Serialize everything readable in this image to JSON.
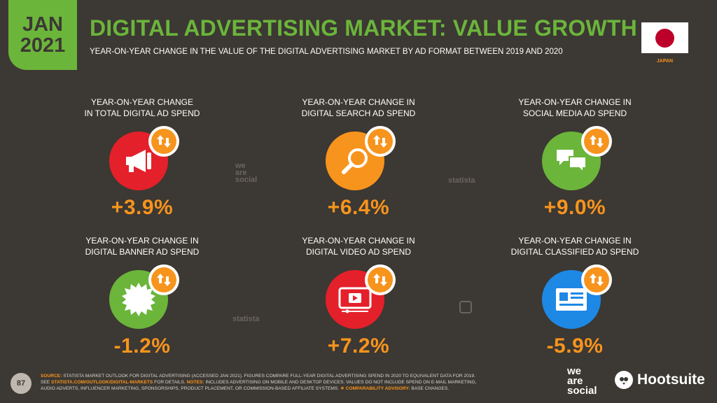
{
  "header": {
    "date_month": "JAN",
    "date_year": "2021",
    "title": "DIGITAL ADVERTISING MARKET: VALUE GROWTH",
    "subtitle": "YEAR-ON-YEAR CHANGE IN THE VALUE OF THE DIGITAL ADVERTISING MARKET BY AD FORMAT BETWEEN 2019 AND 2020",
    "country": "JAPAN"
  },
  "panels": [
    {
      "label1": "YEAR-ON-YEAR CHANGE",
      "label2": "IN TOTAL DIGITAL AD SPEND",
      "value": "+3.9%",
      "color": "#e4202a",
      "icon": "megaphone-icon"
    },
    {
      "label1": "YEAR-ON-YEAR CHANGE IN",
      "label2": "DIGITAL SEARCH AD SPEND",
      "value": "+6.4%",
      "color": "#f7941d",
      "icon": "magnifier-icon"
    },
    {
      "label1": "YEAR-ON-YEAR CHANGE IN",
      "label2": "SOCIAL MEDIA AD SPEND",
      "value": "+9.0%",
      "color": "#6bb53b",
      "icon": "speech-bubbles-icon"
    },
    {
      "label1": "YEAR-ON-YEAR CHANGE IN",
      "label2": "DIGITAL BANNER AD SPEND",
      "value": "-1.2%",
      "color": "#6bb53b",
      "icon": "banner-burst-icon"
    },
    {
      "label1": "YEAR-ON-YEAR CHANGE IN",
      "label2": "DIGITAL VIDEO AD SPEND",
      "value": "+7.2%",
      "color": "#e4202a",
      "icon": "video-player-icon"
    },
    {
      "label1": "YEAR-ON-YEAR CHANGE IN",
      "label2": "DIGITAL CLASSIFIED AD SPEND",
      "value": "-5.9%",
      "color": "#1e88e5",
      "icon": "classified-ad-icon"
    }
  ],
  "watermarks": {
    "we": "we",
    "are": "are",
    "social": "social",
    "statista": "statista"
  },
  "footer": {
    "page_number": "87",
    "source_key": "SOURCE:",
    "source_text": " STATISTA MARKET OUTLOOK FOR DIGITAL ADVERTISING (ACCESSED JAN 2021). FIGURES COMPARE FULL-YEAR DIGITAL ADVERTISING SPEND IN 2020 TO EQUIVALENT DATA FOR 2019.",
    "see_text": "SEE ",
    "link_text": "STATISTA.COM/OUTLOOK/DIGITAL-MARKETS",
    "details_text": " FOR DETAILS. ",
    "notes_key": "NOTES:",
    "notes_text": " INCLUDES ADVERTISING ON MOBILE AND DESKTOP DEVICES. VALUES DO NOT INCLUDE SPEND ON E-MAIL MARKETING,",
    "notes_text2": "AUDIO ADVERTS, INFLUENCER MARKETING, SPONSORSHIPS, PRODUCT PLACEMENT, OR COMMISSION-BASED AFFILIATE SYSTEMS. ",
    "advisory_key": "❖ COMPARABILITY ADVISORY:",
    "advisory_text": " BASE CHANGES."
  },
  "brand": {
    "ws_we": "we",
    "ws_are": "are",
    "ws_social": "social",
    "hootsuite": "Hootsuite"
  }
}
